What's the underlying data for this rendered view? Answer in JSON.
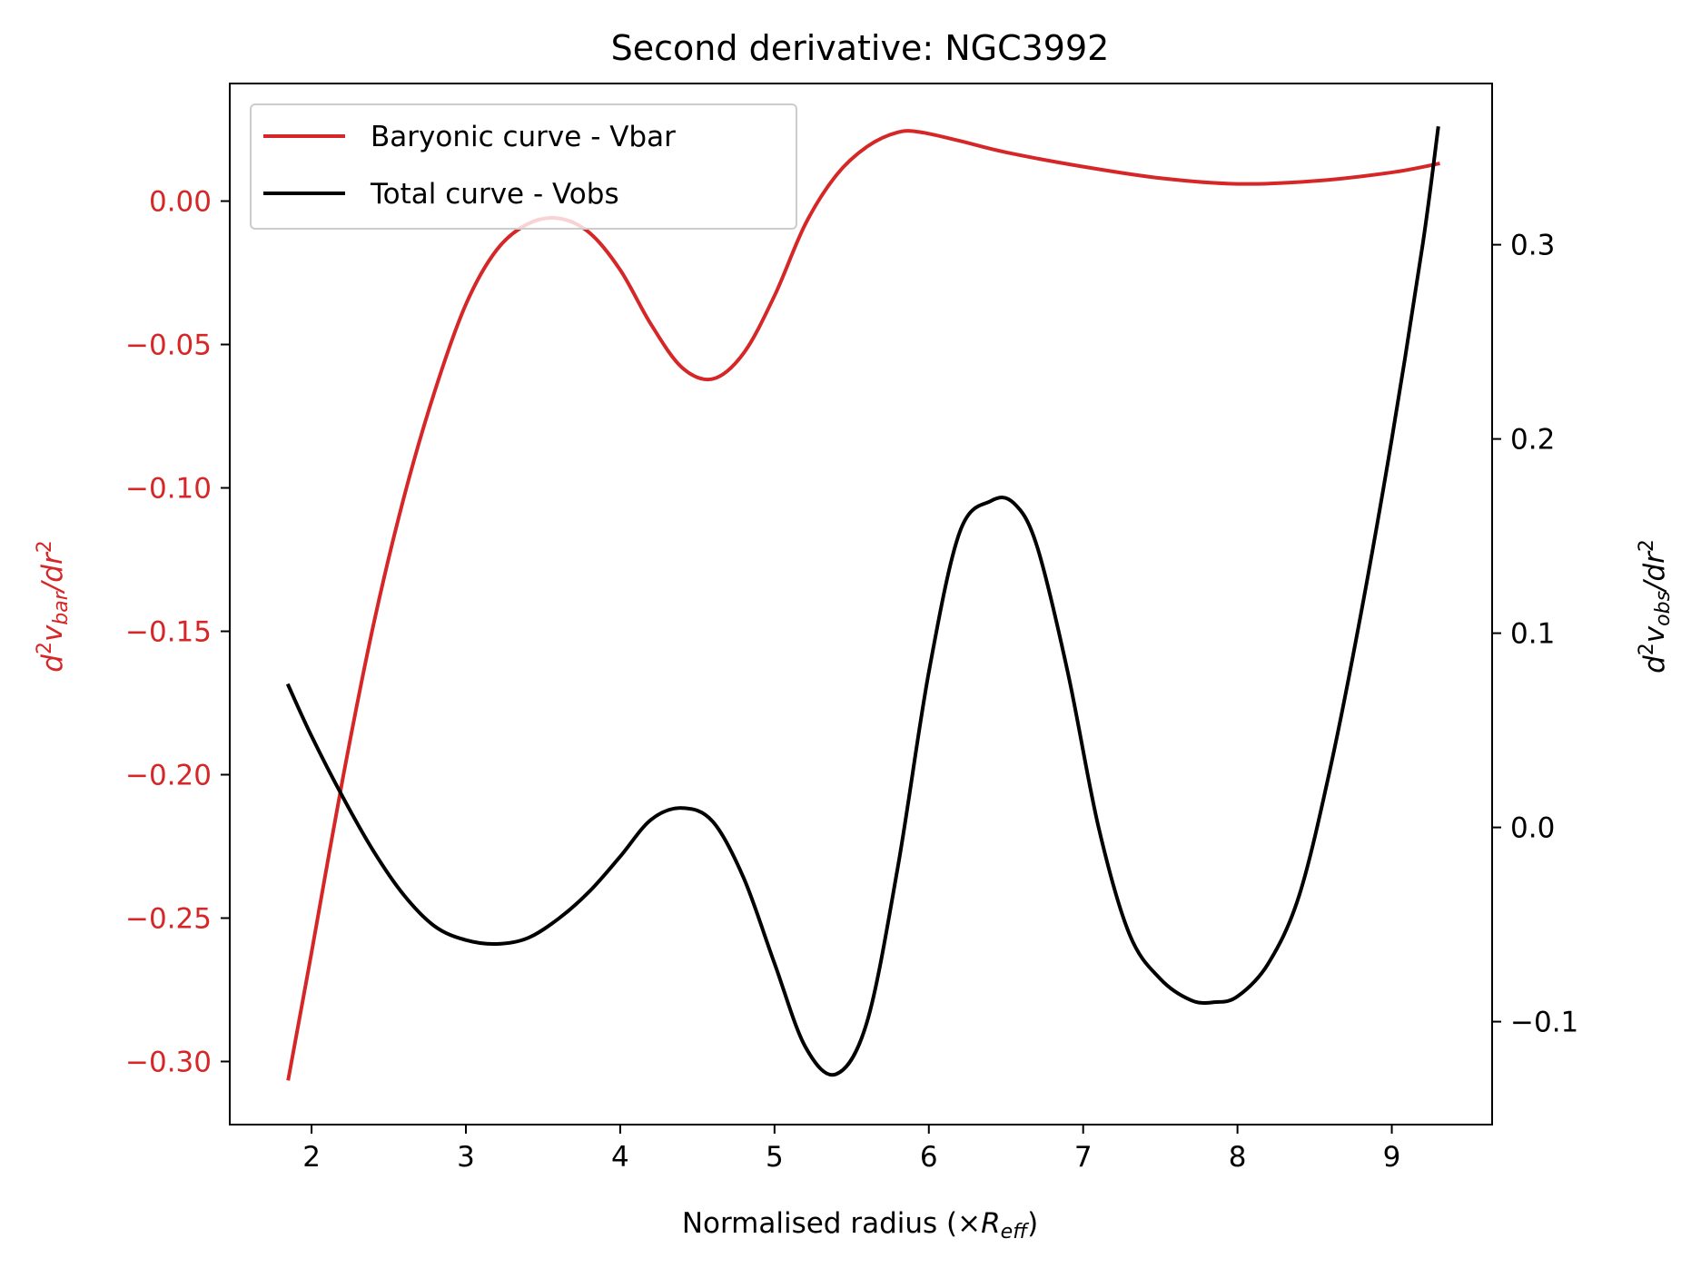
{
  "chart_data": {
    "type": "line",
    "title": "Second derivative: NGC3992",
    "xlabel_text": "Normalised radius (×",
    "xlabel_symbol": "R",
    "xlabel_subscript": "eff",
    "xlabel_close": ")",
    "ylabel_left": {
      "d": "d",
      "exp": "2",
      "v": "v",
      "sub": "bar",
      "rest": "/dr",
      "exp2": "2"
    },
    "ylabel_right": {
      "d": "d",
      "exp": "2",
      "v": "v",
      "sub": "obs",
      "rest": "/dr",
      "exp2": "2"
    },
    "xlim": [
      1.47,
      9.65
    ],
    "ylim_left": [
      -0.322,
      0.041
    ],
    "ylim_right": [
      -0.153,
      0.383
    ],
    "xticks": [
      2,
      3,
      4,
      5,
      6,
      7,
      8,
      9
    ],
    "xtick_labels": [
      "2",
      "3",
      "4",
      "5",
      "6",
      "7",
      "8",
      "9"
    ],
    "yticks_left": [
      0.0,
      -0.05,
      -0.1,
      -0.15,
      -0.2,
      -0.25,
      -0.3
    ],
    "ytick_labels_left": [
      "0.00",
      "−0.05",
      "−0.10",
      "−0.15",
      "−0.20",
      "−0.25",
      "−0.30"
    ],
    "yticks_right": [
      0.3,
      0.2,
      0.1,
      0.0,
      -0.1
    ],
    "ytick_labels_right": [
      "0.3",
      "0.2",
      "0.1",
      "0.0",
      "−0.1"
    ],
    "legend_position": "upper-left",
    "colors": {
      "left_axis": "#d62728",
      "right_axis": "#000000"
    },
    "series": [
      {
        "name": "Baryonic curve - Vbar",
        "axis": "left",
        "color": "#d62728",
        "x": [
          1.85,
          2.0,
          2.2,
          2.4,
          2.6,
          2.8,
          3.0,
          3.2,
          3.4,
          3.6,
          3.8,
          4.0,
          4.2,
          4.4,
          4.6,
          4.8,
          5.0,
          5.2,
          5.4,
          5.6,
          5.8,
          5.95,
          6.2,
          6.5,
          7.0,
          7.5,
          8.0,
          8.5,
          9.0,
          9.3
        ],
        "y": [
          -0.306,
          -0.262,
          -0.202,
          -0.148,
          -0.103,
          -0.066,
          -0.036,
          -0.017,
          -0.008,
          -0.006,
          -0.011,
          -0.024,
          -0.043,
          -0.058,
          -0.062,
          -0.053,
          -0.033,
          -0.008,
          0.009,
          0.019,
          0.024,
          0.024,
          0.021,
          0.017,
          0.012,
          0.008,
          0.006,
          0.007,
          0.01,
          0.013
        ]
      },
      {
        "name": "Total curve - Vobs",
        "axis": "right",
        "color": "#000000",
        "x": [
          1.85,
          2.0,
          2.2,
          2.4,
          2.6,
          2.8,
          3.0,
          3.2,
          3.4,
          3.6,
          3.8,
          4.0,
          4.2,
          4.4,
          4.6,
          4.8,
          5.0,
          5.2,
          5.4,
          5.6,
          5.8,
          6.0,
          6.2,
          6.4,
          6.55,
          6.7,
          6.9,
          7.1,
          7.3,
          7.5,
          7.7,
          7.85,
          8.0,
          8.2,
          8.4,
          8.6,
          8.8,
          9.0,
          9.2,
          9.3
        ],
        "y": [
          0.073,
          0.047,
          0.016,
          -0.012,
          -0.035,
          -0.051,
          -0.058,
          -0.06,
          -0.057,
          -0.047,
          -0.033,
          -0.015,
          0.004,
          0.01,
          0.003,
          -0.026,
          -0.07,
          -0.113,
          -0.127,
          -0.1,
          -0.02,
          0.08,
          0.152,
          0.168,
          0.167,
          0.145,
          0.08,
          0.0,
          -0.055,
          -0.078,
          -0.089,
          -0.09,
          -0.087,
          -0.07,
          -0.035,
          0.03,
          0.11,
          0.2,
          0.3,
          0.36
        ]
      }
    ]
  }
}
